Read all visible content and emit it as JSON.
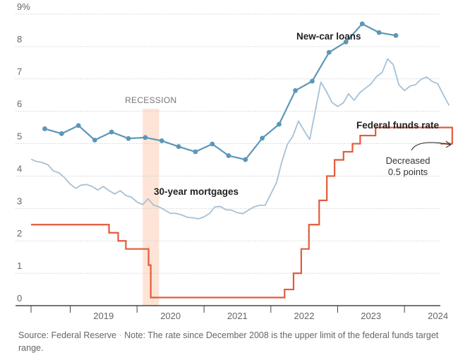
{
  "chart_data": {
    "type": "line",
    "y_unit_label": "9%",
    "ylim": [
      0,
      9
    ],
    "y_ticks": [
      "",
      "1",
      "2",
      "3",
      "4",
      "5",
      "6",
      "7",
      "8",
      "9%"
    ],
    "y_tick_values": [
      0,
      1,
      2,
      3,
      4,
      5,
      6,
      7,
      8,
      9
    ],
    "y_tick_labels": [
      "0",
      "1",
      "2",
      "3",
      "4",
      "5",
      "6",
      "7",
      "8",
      "9%"
    ],
    "xlim": [
      "2018-06-01",
      "2024-07-15"
    ],
    "x_ticks": [
      "2019",
      "2020",
      "2021",
      "2022",
      "2023",
      "2024"
    ],
    "grid": true,
    "recession": {
      "label": "RECESSION",
      "start": "2020-02-01",
      "end": "2020-04-30"
    },
    "series": [
      {
        "name": "New-car loans",
        "color": "#5b97b8",
        "style": "line-with-markers",
        "points": [
          [
            "2018-08-15",
            5.46
          ],
          [
            "2018-11-15",
            5.31
          ],
          [
            "2019-02-15",
            5.56
          ],
          [
            "2019-05-15",
            5.11
          ],
          [
            "2019-08-15",
            5.36
          ],
          [
            "2019-11-15",
            5.16
          ],
          [
            "2020-02-15",
            5.19
          ],
          [
            "2020-05-15",
            5.09
          ],
          [
            "2020-08-15",
            4.91
          ],
          [
            "2020-11-15",
            4.75
          ],
          [
            "2021-02-15",
            4.99
          ],
          [
            "2021-05-15",
            4.63
          ],
          [
            "2021-08-15",
            4.51
          ],
          [
            "2021-11-15",
            5.17
          ],
          [
            "2022-02-15",
            5.6
          ],
          [
            "2022-05-15",
            6.64
          ],
          [
            "2022-08-15",
            6.93
          ],
          [
            "2022-11-15",
            7.82
          ],
          [
            "2023-02-15",
            8.14
          ],
          [
            "2023-05-15",
            8.7
          ],
          [
            "2023-08-15",
            8.43
          ],
          [
            "2023-11-15",
            8.34
          ]
        ]
      },
      {
        "name": "30-year mortgages",
        "color": "#a6c1d6",
        "style": "line",
        "points": [
          [
            "2018-06-01",
            4.52
          ],
          [
            "2018-07-01",
            4.45
          ],
          [
            "2018-08-01",
            4.42
          ],
          [
            "2018-09-01",
            4.35
          ],
          [
            "2018-10-01",
            4.16
          ],
          [
            "2018-11-01",
            4.1
          ],
          [
            "2018-12-01",
            3.95
          ],
          [
            "2019-01-01",
            3.75
          ],
          [
            "2019-02-01",
            3.62
          ],
          [
            "2019-03-01",
            3.72
          ],
          [
            "2019-04-01",
            3.74
          ],
          [
            "2019-05-01",
            3.68
          ],
          [
            "2019-06-01",
            3.57
          ],
          [
            "2019-07-01",
            3.68
          ],
          [
            "2019-08-01",
            3.55
          ],
          [
            "2019-09-01",
            3.45
          ],
          [
            "2019-10-01",
            3.55
          ],
          [
            "2019-11-01",
            3.4
          ],
          [
            "2019-12-01",
            3.35
          ],
          [
            "2020-01-01",
            3.2
          ],
          [
            "2020-02-01",
            3.12
          ],
          [
            "2020-03-01",
            3.3
          ],
          [
            "2020-04-01",
            3.1
          ],
          [
            "2020-05-01",
            3.05
          ],
          [
            "2020-06-01",
            2.95
          ],
          [
            "2020-07-01",
            2.85
          ],
          [
            "2020-08-01",
            2.85
          ],
          [
            "2020-09-01",
            2.8
          ],
          [
            "2020-10-01",
            2.73
          ],
          [
            "2020-11-01",
            2.71
          ],
          [
            "2020-12-01",
            2.68
          ],
          [
            "2021-01-01",
            2.74
          ],
          [
            "2021-02-01",
            2.85
          ],
          [
            "2021-03-01",
            3.05
          ],
          [
            "2021-04-01",
            3.06
          ],
          [
            "2021-05-01",
            2.96
          ],
          [
            "2021-06-01",
            2.95
          ],
          [
            "2021-07-01",
            2.87
          ],
          [
            "2021-08-01",
            2.84
          ],
          [
            "2021-09-01",
            2.95
          ],
          [
            "2021-10-01",
            3.05
          ],
          [
            "2021-11-01",
            3.1
          ],
          [
            "2021-12-01",
            3.1
          ],
          [
            "2022-01-01",
            3.45
          ],
          [
            "2022-02-01",
            3.8
          ],
          [
            "2022-03-01",
            4.42
          ],
          [
            "2022-04-01",
            4.98
          ],
          [
            "2022-05-01",
            5.23
          ],
          [
            "2022-06-01",
            5.7
          ],
          [
            "2022-07-01",
            5.41
          ],
          [
            "2022-08-01",
            5.13
          ],
          [
            "2022-09-01",
            6.02
          ],
          [
            "2022-10-01",
            6.9
          ],
          [
            "2022-11-01",
            6.61
          ],
          [
            "2022-12-01",
            6.27
          ],
          [
            "2023-01-01",
            6.15
          ],
          [
            "2023-02-01",
            6.26
          ],
          [
            "2023-03-01",
            6.54
          ],
          [
            "2023-04-01",
            6.34
          ],
          [
            "2023-05-01",
            6.57
          ],
          [
            "2023-06-01",
            6.71
          ],
          [
            "2023-07-01",
            6.84
          ],
          [
            "2023-08-01",
            7.07
          ],
          [
            "2023-09-01",
            7.2
          ],
          [
            "2023-10-01",
            7.62
          ],
          [
            "2023-11-01",
            7.44
          ],
          [
            "2023-12-01",
            6.82
          ],
          [
            "2024-01-01",
            6.64
          ],
          [
            "2024-02-01",
            6.78
          ],
          [
            "2024-03-01",
            6.82
          ],
          [
            "2024-04-01",
            6.99
          ],
          [
            "2024-05-01",
            7.06
          ],
          [
            "2024-06-01",
            6.92
          ],
          [
            "2024-07-01",
            6.85
          ],
          [
            "2024-08-01",
            6.5
          ],
          [
            "2024-09-01",
            6.18
          ]
        ]
      },
      {
        "name": "Federal funds rate",
        "color": "#e35b3c",
        "style": "step",
        "points": [
          [
            "2018-06-01",
            2.5
          ],
          [
            "2019-08-01",
            2.25
          ],
          [
            "2019-09-20",
            2.0
          ],
          [
            "2019-11-01",
            1.75
          ],
          [
            "2020-03-04",
            1.25
          ],
          [
            "2020-03-16",
            0.25
          ],
          [
            "2022-03-17",
            0.5
          ],
          [
            "2022-05-05",
            1.0
          ],
          [
            "2022-06-16",
            1.75
          ],
          [
            "2022-07-28",
            2.5
          ],
          [
            "2022-09-22",
            3.25
          ],
          [
            "2022-11-03",
            4.0
          ],
          [
            "2022-12-15",
            4.5
          ],
          [
            "2023-02-02",
            4.75
          ],
          [
            "2023-03-23",
            5.0
          ],
          [
            "2023-05-04",
            5.25
          ],
          [
            "2023-07-27",
            5.5
          ],
          [
            "2024-09-18",
            5.0
          ]
        ]
      }
    ],
    "annotations": [
      {
        "text": "Decreased",
        "at": [
          "2024-09-18",
          5.0
        ]
      },
      {
        "text": "0.5 points",
        "at": [
          "2024-09-18",
          5.0
        ]
      }
    ]
  },
  "source": "Source: Federal Reserve",
  "separator": "·",
  "note": "Note: The rate since December 2008 is the upper limit of the federal funds target range."
}
